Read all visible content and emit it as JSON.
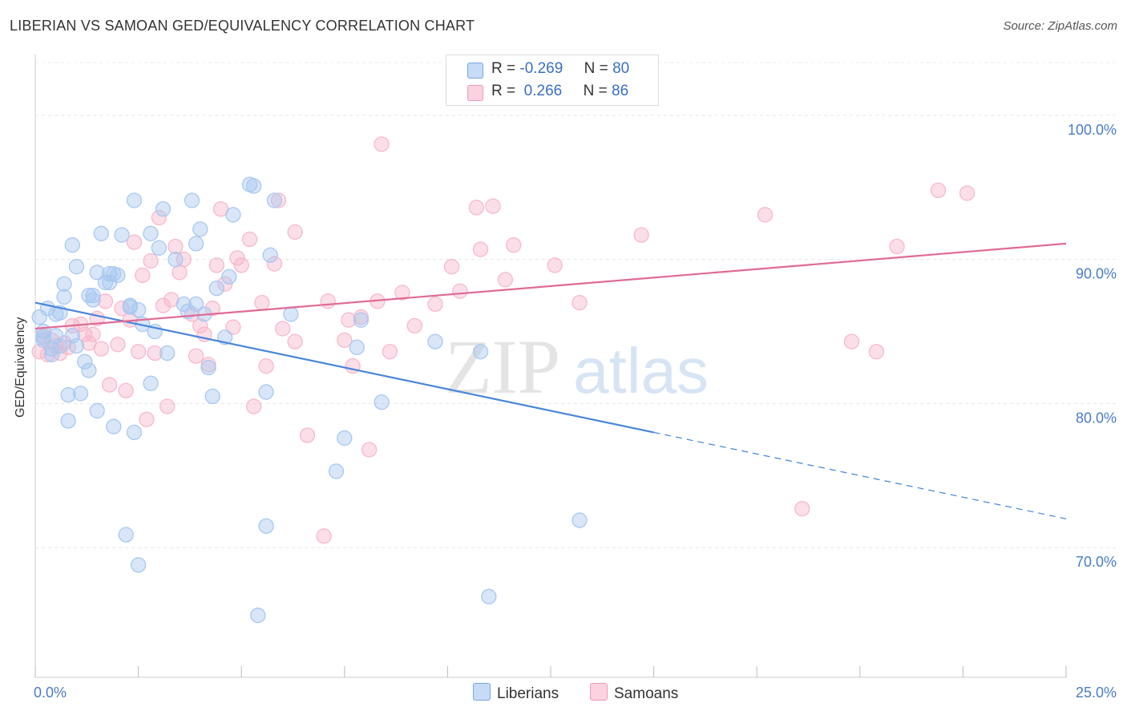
{
  "header": {
    "title": "LIBERIAN VS SAMOAN GED/EQUIVALENCY CORRELATION CHART",
    "source": "Source: ZipAtlas.com"
  },
  "watermark": {
    "zip": "ZIP",
    "atlas": "atlas"
  },
  "legend": {
    "rows": [
      {
        "r_label": "R =",
        "r_value": "-0.269",
        "n_label": "N =",
        "n_value": "80",
        "color": "#a9c8f0"
      },
      {
        "r_label": "R =",
        "r_value": "0.266",
        "n_label": "N =",
        "n_value": "86",
        "color": "#f7b8cb"
      }
    ]
  },
  "bottom_legend": [
    "Liberians",
    "Samoans"
  ],
  "chart_data": {
    "type": "scatter",
    "title": "LIBERIAN VS SAMOAN GED/EQUIVALENCY CORRELATION CHART",
    "xlabel": "",
    "ylabel": "GED/Equivalency",
    "xlim": [
      0,
      25
    ],
    "ylim": [
      61,
      104
    ],
    "x_tick_labels": [
      "0.0%",
      "25.0%"
    ],
    "y_ticks": [
      70,
      80,
      90,
      100
    ],
    "y_tick_labels": [
      "70.0%",
      "80.0%",
      "90.0%",
      "100.0%"
    ],
    "grid": true,
    "legend_position": "top-center",
    "series": [
      {
        "name": "Liberians",
        "color": "#4a86d8",
        "fill": "#a9c8f0",
        "trend": {
          "x": [
            0,
            15,
            25
          ],
          "y": [
            87.0,
            78.0,
            72.0
          ],
          "solid_until": 15
        },
        "points": [
          [
            0.1,
            86.0
          ],
          [
            0.2,
            84.6
          ],
          [
            0.2,
            84.4
          ],
          [
            0.3,
            86.6
          ],
          [
            0.4,
            83.4
          ],
          [
            0.5,
            86.2
          ],
          [
            0.5,
            84.7
          ],
          [
            0.6,
            84.0
          ],
          [
            0.6,
            86.3
          ],
          [
            0.7,
            88.3
          ],
          [
            0.7,
            87.4
          ],
          [
            0.8,
            80.6
          ],
          [
            0.8,
            78.8
          ],
          [
            0.9,
            84.7
          ],
          [
            0.9,
            91.0
          ],
          [
            1.0,
            89.5
          ],
          [
            1.0,
            84.0
          ],
          [
            1.1,
            80.7
          ],
          [
            1.2,
            82.9
          ],
          [
            1.3,
            82.3
          ],
          [
            1.4,
            87.2
          ],
          [
            1.4,
            87.5
          ],
          [
            1.5,
            89.1
          ],
          [
            1.5,
            79.5
          ],
          [
            1.6,
            91.8
          ],
          [
            1.7,
            88.4
          ],
          [
            1.8,
            89.0
          ],
          [
            1.8,
            88.4
          ],
          [
            1.9,
            78.4
          ],
          [
            1.9,
            89.0
          ],
          [
            2.0,
            88.9
          ],
          [
            2.1,
            91.7
          ],
          [
            2.2,
            70.9
          ],
          [
            2.3,
            86.7
          ],
          [
            2.3,
            86.8
          ],
          [
            2.4,
            78.0
          ],
          [
            2.4,
            94.1
          ],
          [
            2.5,
            86.5
          ],
          [
            2.5,
            68.8
          ],
          [
            2.6,
            85.5
          ],
          [
            2.8,
            91.8
          ],
          [
            2.8,
            81.4
          ],
          [
            2.9,
            85.0
          ],
          [
            3.0,
            90.8
          ],
          [
            3.1,
            93.5
          ],
          [
            3.2,
            83.5
          ],
          [
            3.4,
            90.0
          ],
          [
            3.6,
            86.9
          ],
          [
            3.7,
            86.4
          ],
          [
            3.8,
            94.1
          ],
          [
            3.9,
            91.1
          ],
          [
            3.9,
            86.9
          ],
          [
            4.0,
            92.1
          ],
          [
            4.1,
            86.2
          ],
          [
            4.2,
            82.5
          ],
          [
            4.3,
            80.5
          ],
          [
            4.4,
            88.0
          ],
          [
            4.6,
            84.6
          ],
          [
            4.7,
            88.8
          ],
          [
            4.8,
            93.1
          ],
          [
            5.2,
            95.2
          ],
          [
            5.3,
            95.1
          ],
          [
            5.4,
            65.3
          ],
          [
            5.6,
            71.5
          ],
          [
            5.6,
            80.8
          ],
          [
            5.7,
            90.3
          ],
          [
            5.8,
            94.1
          ],
          [
            6.2,
            86.2
          ],
          [
            7.3,
            75.3
          ],
          [
            7.5,
            77.6
          ],
          [
            7.8,
            83.9
          ],
          [
            7.9,
            85.8
          ],
          [
            8.4,
            80.1
          ],
          [
            9.7,
            84.3
          ],
          [
            10.8,
            83.6
          ],
          [
            11.0,
            66.6
          ],
          [
            13.2,
            71.9
          ],
          [
            0.2,
            85.0
          ],
          [
            0.4,
            83.8
          ],
          [
            1.3,
            87.5
          ]
        ]
      },
      {
        "name": "Samoans",
        "color": "#e06a95",
        "fill": "#f7b8cb",
        "trend": {
          "x": [
            0,
            25
          ],
          "y": [
            85.2,
            91.1
          ]
        },
        "points": [
          [
            0.1,
            83.6
          ],
          [
            0.2,
            84.7
          ],
          [
            0.3,
            83.4
          ],
          [
            0.4,
            84.4
          ],
          [
            0.5,
            84.0
          ],
          [
            0.6,
            83.5
          ],
          [
            0.8,
            83.9
          ],
          [
            0.9,
            85.4
          ],
          [
            1.1,
            85.5
          ],
          [
            1.2,
            84.8
          ],
          [
            1.3,
            84.2
          ],
          [
            1.5,
            85.9
          ],
          [
            1.6,
            83.8
          ],
          [
            1.7,
            87.1
          ],
          [
            1.8,
            81.3
          ],
          [
            2.0,
            84.1
          ],
          [
            2.1,
            86.6
          ],
          [
            2.2,
            80.9
          ],
          [
            2.3,
            85.8
          ],
          [
            2.4,
            91.2
          ],
          [
            2.5,
            83.6
          ],
          [
            2.6,
            88.9
          ],
          [
            2.7,
            78.9
          ],
          [
            2.8,
            89.9
          ],
          [
            3.0,
            92.9
          ],
          [
            3.1,
            86.8
          ],
          [
            3.2,
            79.8
          ],
          [
            3.3,
            87.2
          ],
          [
            3.4,
            90.9
          ],
          [
            3.5,
            89.1
          ],
          [
            3.6,
            90.0
          ],
          [
            3.8,
            86.2
          ],
          [
            3.9,
            83.3
          ],
          [
            4.1,
            84.8
          ],
          [
            4.2,
            82.7
          ],
          [
            4.3,
            86.6
          ],
          [
            4.4,
            89.6
          ],
          [
            4.5,
            93.5
          ],
          [
            4.6,
            88.3
          ],
          [
            4.8,
            85.3
          ],
          [
            4.9,
            90.1
          ],
          [
            5.0,
            89.6
          ],
          [
            5.2,
            91.4
          ],
          [
            5.3,
            79.8
          ],
          [
            5.5,
            87.0
          ],
          [
            5.6,
            82.6
          ],
          [
            5.8,
            89.7
          ],
          [
            5.9,
            94.1
          ],
          [
            6.0,
            85.2
          ],
          [
            6.3,
            84.3
          ],
          [
            6.3,
            91.9
          ],
          [
            6.6,
            77.8
          ],
          [
            7.0,
            70.8
          ],
          [
            7.1,
            87.1
          ],
          [
            7.5,
            84.4
          ],
          [
            7.6,
            85.8
          ],
          [
            7.7,
            82.6
          ],
          [
            7.9,
            86.0
          ],
          [
            8.1,
            76.8
          ],
          [
            8.3,
            87.1
          ],
          [
            8.4,
            98.0
          ],
          [
            8.6,
            83.6
          ],
          [
            8.9,
            87.7
          ],
          [
            9.2,
            85.4
          ],
          [
            9.7,
            86.9
          ],
          [
            10.1,
            89.5
          ],
          [
            10.3,
            87.8
          ],
          [
            10.7,
            93.6
          ],
          [
            10.8,
            90.7
          ],
          [
            11.1,
            93.7
          ],
          [
            11.4,
            88.6
          ],
          [
            11.6,
            91.0
          ],
          [
            12.6,
            89.6
          ],
          [
            13.2,
            87.0
          ],
          [
            14.7,
            91.7
          ],
          [
            17.7,
            93.1
          ],
          [
            18.6,
            72.7
          ],
          [
            19.8,
            84.3
          ],
          [
            20.4,
            83.6
          ],
          [
            20.9,
            90.9
          ],
          [
            21.9,
            94.8
          ],
          [
            22.6,
            94.6
          ],
          [
            0.7,
            84.2
          ],
          [
            1.4,
            84.8
          ],
          [
            2.9,
            83.5
          ],
          [
            4.0,
            85.4
          ]
        ]
      }
    ]
  }
}
